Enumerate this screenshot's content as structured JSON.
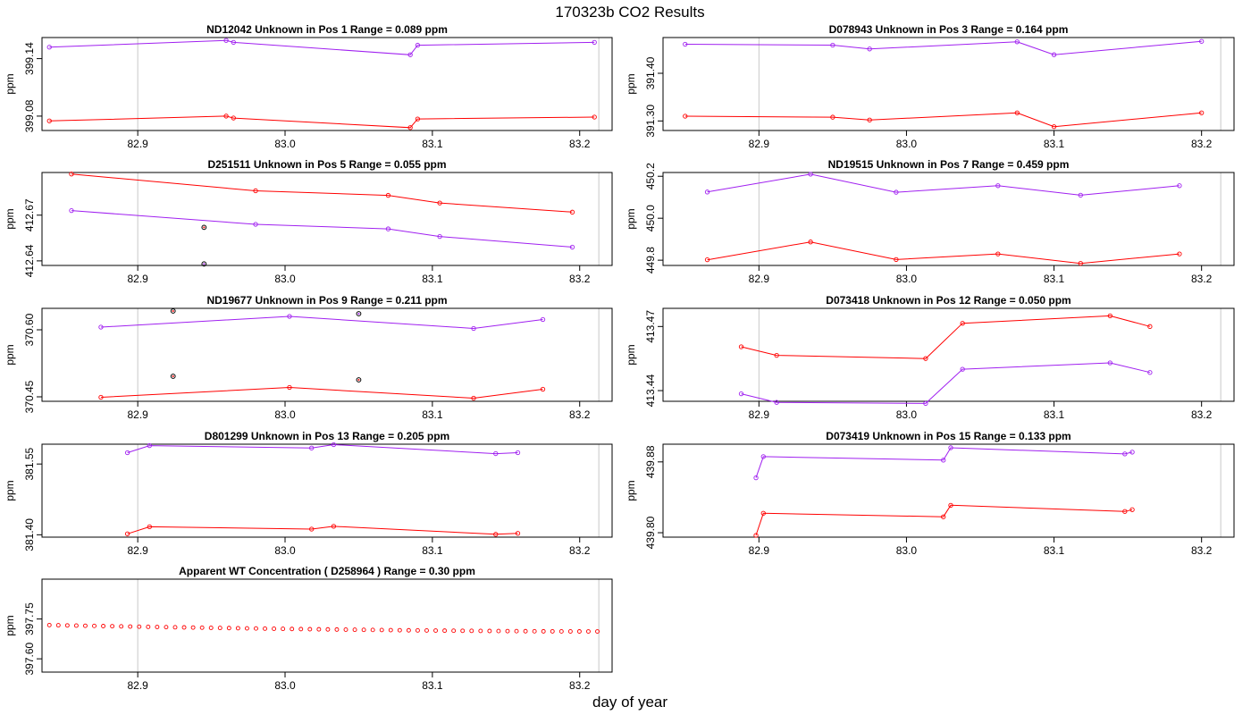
{
  "figure": {
    "title": "170323b  CO2 Results",
    "xlabel": "day of year",
    "colors": {
      "series_a": "#ff0000",
      "series_b": "#a020f0",
      "refline": "#c8c8c8",
      "outlier": "#000000"
    }
  },
  "chart_data": [
    {
      "type": "line",
      "id": "p1",
      "title": "ND12042    Unknown in Pos 1         Range =  0.089 ppm",
      "ylabel": "ppm",
      "xlim": [
        82.835,
        83.222
      ],
      "ylim": [
        399.065,
        399.162
      ],
      "xticks": [
        82.9,
        83.0,
        83.1,
        83.2
      ],
      "xtick_labels": [
        "82.9",
        "83.0",
        "83.1",
        "83.2"
      ],
      "yticks": [
        399.08,
        399.14
      ],
      "ytick_labels": [
        "399.08",
        "399.14"
      ],
      "vlines": [
        82.9,
        83.213
      ],
      "series": [
        {
          "name": "red",
          "x": [
            82.84,
            82.96,
            82.965,
            83.085,
            83.09,
            83.21
          ],
          "y": [
            399.075,
            399.08,
            399.078,
            399.068,
            399.077,
            399.079
          ]
        },
        {
          "name": "purple",
          "x": [
            82.84,
            82.96,
            82.965,
            83.085,
            83.09,
            83.21
          ],
          "y": [
            399.152,
            399.159,
            399.157,
            399.144,
            399.154,
            399.157
          ]
        }
      ],
      "outliers": []
    },
    {
      "type": "line",
      "id": "p2",
      "title": "D078943    Unknown in Pos 3         Range =  0.164 ppm",
      "ylabel": "ppm",
      "xlim": [
        82.835,
        83.222
      ],
      "ylim": [
        391.28,
        391.475
      ],
      "xticks": [
        82.9,
        83.0,
        83.1,
        83.2
      ],
      "xtick_labels": [
        "82.9",
        "83.0",
        "83.1",
        "83.2"
      ],
      "yticks": [
        391.3,
        391.4
      ],
      "ytick_labels": [
        "391.30",
        "391.40"
      ],
      "vlines": [
        82.9,
        83.213
      ],
      "series": [
        {
          "name": "red",
          "x": [
            82.85,
            82.95,
            82.975,
            83.075,
            83.1,
            83.2
          ],
          "y": [
            391.31,
            391.308,
            391.302,
            391.317,
            391.288,
            391.317
          ]
        },
        {
          "name": "purple",
          "x": [
            82.85,
            82.95,
            82.975,
            83.075,
            83.1,
            83.2
          ],
          "y": [
            391.461,
            391.459,
            391.451,
            391.466,
            391.439,
            391.467
          ]
        }
      ],
      "outliers": []
    },
    {
      "type": "line",
      "id": "p3",
      "title": "D251511    Unknown in Pos 5         Range =  0.055 ppm",
      "ylabel": "ppm",
      "xlim": [
        82.835,
        83.222
      ],
      "ylim": [
        412.637,
        412.698
      ],
      "xticks": [
        82.9,
        83.0,
        83.1,
        83.2
      ],
      "xtick_labels": [
        "82.9",
        "83.0",
        "83.1",
        "83.2"
      ],
      "yticks": [
        412.64,
        412.67
      ],
      "ytick_labels": [
        "412.64",
        "412.67"
      ],
      "vlines": [
        82.9,
        83.213
      ],
      "series": [
        {
          "name": "red",
          "x": [
            82.855,
            82.98,
            83.07,
            83.105,
            83.195
          ],
          "y": [
            412.697,
            412.686,
            412.683,
            412.678,
            412.672
          ]
        },
        {
          "name": "purple",
          "x": [
            82.855,
            82.98,
            83.07,
            83.105,
            83.195
          ],
          "y": [
            412.673,
            412.664,
            412.661,
            412.656,
            412.649
          ]
        }
      ],
      "outliers": [
        {
          "x": 82.945,
          "y": 412.662,
          "color": "red"
        },
        {
          "x": 82.945,
          "y": 412.638,
          "color": "purple"
        }
      ]
    },
    {
      "type": "line",
      "id": "p4",
      "title": "ND19515    Unknown in Pos 7         Range =  0.459 ppm",
      "ylabel": "ppm",
      "xlim": [
        82.835,
        83.222
      ],
      "ylim": [
        449.775,
        450.218
      ],
      "xticks": [
        82.9,
        83.0,
        83.1,
        83.2
      ],
      "xtick_labels": [
        "82.9",
        "83.0",
        "83.1",
        "83.2"
      ],
      "yticks": [
        449.8,
        450.0,
        450.2
      ],
      "ytick_labels": [
        "449.8",
        "450.0",
        "450.2"
      ],
      "vlines": [
        82.9,
        83.213
      ],
      "series": [
        {
          "name": "red",
          "x": [
            82.865,
            82.935,
            82.993,
            83.062,
            83.118,
            83.185
          ],
          "y": [
            449.802,
            449.887,
            449.803,
            449.83,
            449.785,
            449.83
          ]
        },
        {
          "name": "purple",
          "x": [
            82.865,
            82.935,
            82.993,
            83.062,
            83.118,
            83.185
          ],
          "y": [
            450.125,
            450.21,
            450.124,
            450.155,
            450.11,
            450.155
          ]
        }
      ],
      "outliers": []
    },
    {
      "type": "line",
      "id": "p5",
      "title": "ND19677    Unknown in Pos 9         Range =  0.211 ppm",
      "ylabel": "ppm",
      "xlim": [
        82.835,
        83.222
      ],
      "ylim": [
        370.44,
        370.648
      ],
      "xticks": [
        82.9,
        83.0,
        83.1,
        83.2
      ],
      "xtick_labels": [
        "82.9",
        "83.0",
        "83.1",
        "83.2"
      ],
      "yticks": [
        370.45,
        370.6
      ],
      "ytick_labels": [
        "370.45",
        "370.60"
      ],
      "vlines": [
        82.9,
        83.213
      ],
      "series": [
        {
          "name": "red",
          "x": [
            82.875,
            83.003,
            83.128,
            83.175
          ],
          "y": [
            370.449,
            370.471,
            370.447,
            370.467
          ]
        },
        {
          "name": "purple",
          "x": [
            82.875,
            83.003,
            83.128,
            83.175
          ],
          "y": [
            370.606,
            370.63,
            370.603,
            370.623
          ]
        }
      ],
      "outliers": [
        {
          "x": 82.924,
          "y": 370.642,
          "color": "red"
        },
        {
          "x": 82.924,
          "y": 370.496,
          "color": "red"
        },
        {
          "x": 83.05,
          "y": 370.636,
          "color": "purple"
        },
        {
          "x": 83.05,
          "y": 370.488,
          "color": "red"
        }
      ]
    },
    {
      "type": "line",
      "id": "p6",
      "title": "D073418    Unknown in Pos 12         Range =  0.050 ppm",
      "ylabel": "ppm",
      "xlim": [
        82.835,
        83.222
      ],
      "ylim": [
        413.435,
        413.4785
      ],
      "xticks": [
        82.9,
        83.0,
        83.1,
        83.2
      ],
      "xtick_labels": [
        "82.9",
        "83.0",
        "83.1",
        "83.2"
      ],
      "yticks": [
        413.44,
        413.47
      ],
      "ytick_labels": [
        "413.44",
        "413.47"
      ],
      "vlines": [
        82.9,
        83.213
      ],
      "series": [
        {
          "name": "red",
          "x": [
            82.888,
            82.912,
            83.013,
            83.038,
            83.138,
            83.165
          ],
          "y": [
            413.4605,
            413.4565,
            413.455,
            413.4715,
            413.475,
            413.47
          ]
        },
        {
          "name": "purple",
          "x": [
            82.888,
            82.912,
            83.013,
            83.038,
            83.138,
            83.165
          ],
          "y": [
            413.4385,
            413.4345,
            413.434,
            413.45,
            413.453,
            413.4485
          ]
        }
      ],
      "outliers": []
    },
    {
      "type": "line",
      "id": "p7",
      "title": "D801299    Unknown in Pos 13         Range =  0.205 ppm",
      "ylabel": "ppm",
      "xlim": [
        82.835,
        83.222
      ],
      "ylim": [
        381.395,
        381.592
      ],
      "xticks": [
        82.9,
        83.0,
        83.1,
        83.2
      ],
      "xtick_labels": [
        "82.9",
        "83.0",
        "83.1",
        "83.2"
      ],
      "yticks": [
        381.4,
        381.55
      ],
      "ytick_labels": [
        "381.40",
        "381.55"
      ],
      "vlines": [
        82.9,
        83.213
      ],
      "series": [
        {
          "name": "red",
          "x": [
            82.893,
            82.908,
            83.018,
            83.033,
            83.143,
            83.158
          ],
          "y": [
            381.402,
            381.417,
            381.412,
            381.418,
            381.401,
            381.403
          ]
        },
        {
          "name": "purple",
          "x": [
            82.893,
            82.908,
            83.018,
            83.033,
            83.143,
            83.158
          ],
          "y": [
            381.574,
            381.589,
            381.584,
            381.591,
            381.572,
            381.574
          ]
        }
      ],
      "outliers": []
    },
    {
      "type": "line",
      "id": "p8",
      "title": "D073419    Unknown in Pos 15         Range =  0.133 ppm",
      "ylabel": "ppm",
      "xlim": [
        82.835,
        83.222
      ],
      "ylim": [
        439.795,
        439.9
      ],
      "xticks": [
        82.9,
        83.0,
        83.1,
        83.2
      ],
      "xtick_labels": [
        "82.9",
        "83.0",
        "83.1",
        "83.2"
      ],
      "yticks": [
        439.8,
        439.88
      ],
      "ytick_labels": [
        "439.80",
        "439.88"
      ],
      "vlines": [
        83.213
      ],
      "series": [
        {
          "name": "red",
          "x": [
            82.898,
            82.903,
            83.025,
            83.03,
            83.148,
            83.153
          ],
          "y": [
            439.797,
            439.822,
            439.818,
            439.831,
            439.824,
            439.826
          ]
        },
        {
          "name": "purple",
          "x": [
            82.898,
            82.903,
            83.025,
            83.03,
            83.148,
            83.153
          ],
          "y": [
            439.862,
            439.886,
            439.882,
            439.896,
            439.889,
            439.891
          ]
        }
      ],
      "outliers": []
    },
    {
      "type": "scatter",
      "id": "p9",
      "title": "Apparent WT Concentration ( D258964 )          Range = 0.30 ppm",
      "ylabel": "ppm",
      "xlim": [
        82.835,
        83.222
      ],
      "ylim": [
        397.55,
        397.9
      ],
      "xticks": [
        82.9,
        83.0,
        83.1,
        83.2
      ],
      "xtick_labels": [
        "82.9",
        "83.0",
        "83.1",
        "83.2"
      ],
      "yticks": [
        397.6,
        397.75
      ],
      "ytick_labels": [
        "397.60",
        "397.75"
      ],
      "vlines": [
        82.9,
        83.213
      ],
      "scatter_x_start": 82.84,
      "scatter_x_end": 83.212,
      "scatter_count": 62,
      "scatter_y_start": 397.727,
      "scatter_y_end": 397.703,
      "series": [],
      "outliers": []
    }
  ]
}
